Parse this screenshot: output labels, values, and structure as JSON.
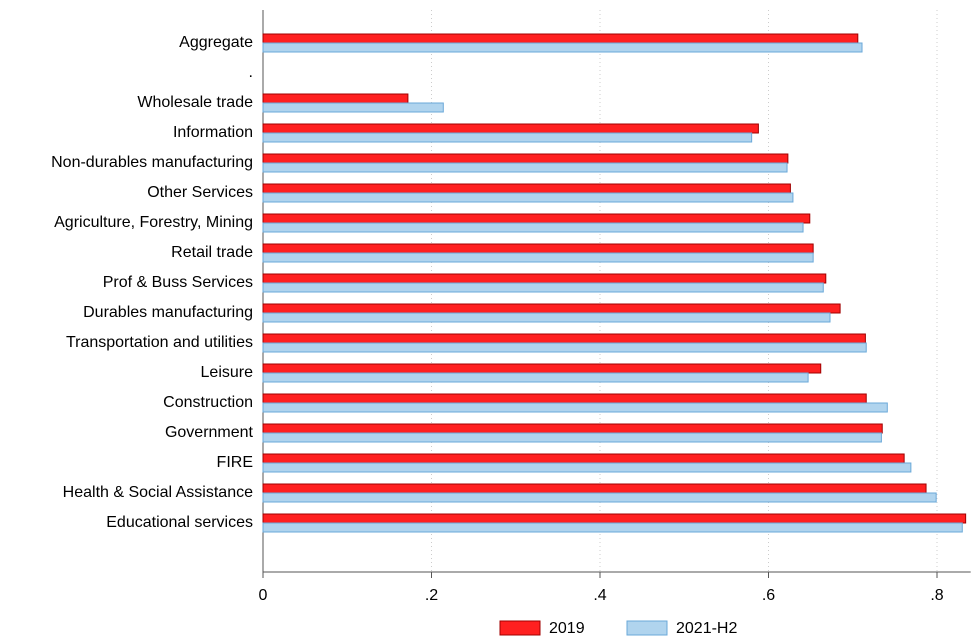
{
  "chart_data": {
    "type": "hbar",
    "categories": [
      "Aggregate",
      ".",
      "Wholesale trade",
      "Information",
      "Non-durables manufacturing",
      "Other Services",
      "Agriculture, Forestry, Mining",
      "Retail trade",
      "Prof & Buss Services",
      "Durables manufacturing",
      "Transportation and utilities",
      "Leisure",
      "Construction",
      "Government",
      "FIRE",
      "Health & Social Assistance",
      "Educational services"
    ],
    "series": [
      {
        "name": "2019",
        "color": "#ff2020",
        "values": [
          0.706,
          null,
          0.172,
          0.588,
          0.623,
          0.626,
          0.649,
          0.653,
          0.668,
          0.685,
          0.715,
          0.662,
          0.716,
          0.735,
          0.761,
          0.787,
          0.834
        ]
      },
      {
        "name": "2021-H2",
        "color": "#b0d4ee",
        "values": [
          0.711,
          null,
          0.214,
          0.58,
          0.622,
          0.629,
          0.641,
          0.653,
          0.665,
          0.673,
          0.716,
          0.647,
          0.741,
          0.734,
          0.769,
          0.799,
          0.83
        ]
      }
    ],
    "xlim": [
      0,
      0.84
    ],
    "xticks": [
      0,
      {
        "value": 0.2,
        "label": ".2"
      },
      {
        "value": 0.4,
        "label": ".4"
      },
      {
        "value": 0.6,
        "label": ".6"
      },
      {
        "value": 0.8,
        "label": ".8"
      }
    ],
    "grid": true,
    "legend": "bottom"
  }
}
